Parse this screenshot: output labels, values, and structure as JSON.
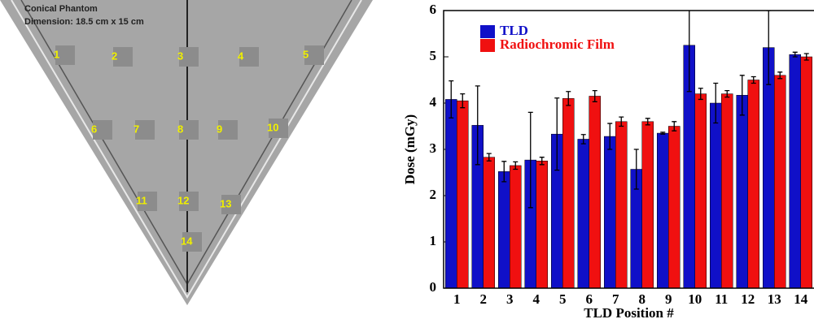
{
  "image": {
    "title": "Conical Phantom",
    "subtitle": "Dimension: 18.5 cm x 15 cm",
    "labels": [
      "1",
      "2",
      "3",
      "4",
      "5",
      "6",
      "7",
      "8",
      "9",
      "10",
      "11",
      "12",
      "13",
      "14"
    ]
  },
  "chart_data": {
    "type": "bar",
    "xlabel": "TLD Position #",
    "ylabel": "Dose (mGy)",
    "categories": [
      "1",
      "2",
      "3",
      "4",
      "5",
      "6",
      "7",
      "8",
      "9",
      "10",
      "11",
      "12",
      "13",
      "14"
    ],
    "series": [
      {
        "name": "TLD",
        "color": "#1010c8",
        "values": [
          4.08,
          3.52,
          2.52,
          2.77,
          3.33,
          3.22,
          3.28,
          2.57,
          3.35,
          5.25,
          4.0,
          4.17,
          5.2,
          5.05
        ],
        "errors": [
          0.4,
          0.85,
          0.22,
          1.03,
          0.78,
          0.1,
          0.28,
          0.43,
          0.02,
          1.0,
          0.43,
          0.43,
          0.8,
          0.05
        ]
      },
      {
        "name": "Radiochromic Film",
        "color": "#f01010",
        "values": [
          4.05,
          2.83,
          2.65,
          2.75,
          4.1,
          4.15,
          3.6,
          3.6,
          3.5,
          4.2,
          4.2,
          4.5,
          4.6,
          5.0
        ],
        "errors": [
          0.15,
          0.08,
          0.08,
          0.08,
          0.15,
          0.12,
          0.1,
          0.07,
          0.1,
          0.12,
          0.07,
          0.07,
          0.07,
          0.07
        ]
      }
    ],
    "ylim": [
      0,
      6
    ],
    "yticks": [
      0,
      1,
      2,
      3,
      4,
      5,
      6
    ],
    "grid": false,
    "legend": "upper-left"
  }
}
